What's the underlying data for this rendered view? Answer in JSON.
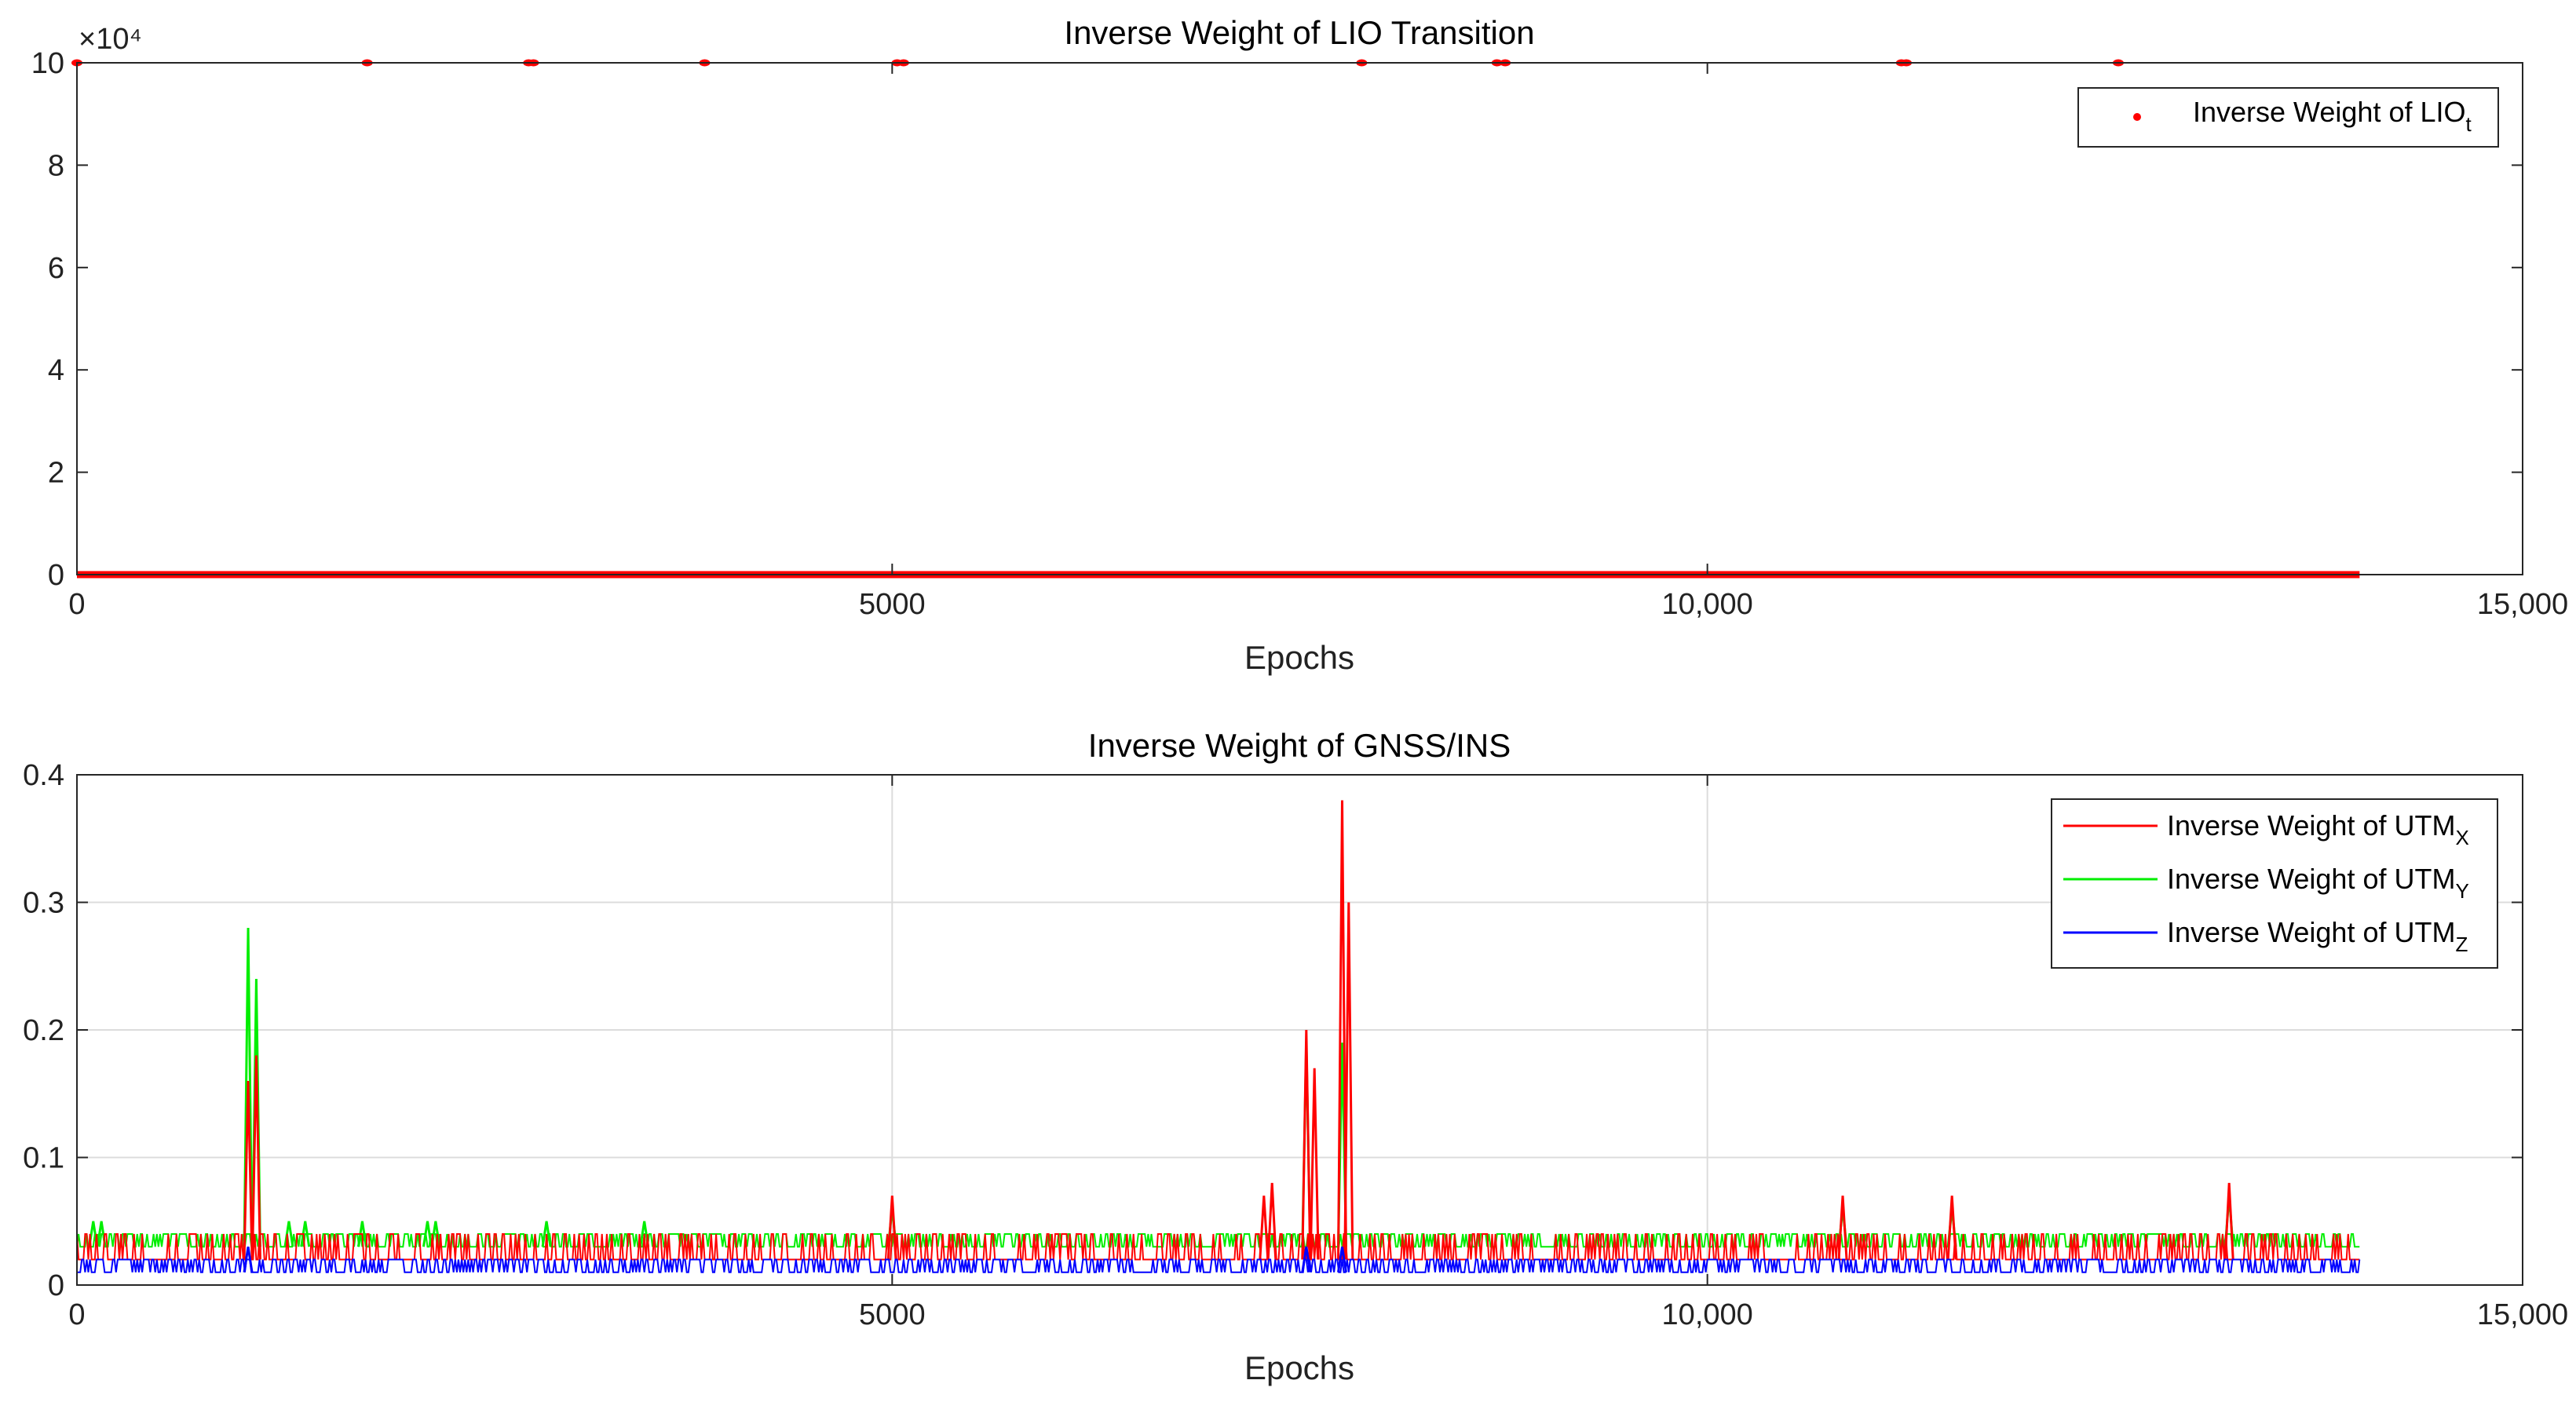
{
  "colors": {
    "utm_x": "#ff0000",
    "utm_y": "#00ee00",
    "utm_z": "#0000ff",
    "lio": "#ff0000"
  },
  "chart_data": [
    {
      "type": "scatter",
      "title": "Inverse Weight of LIO Transition",
      "xlabel": "Epochs",
      "ylabel": "",
      "xlim": [
        0,
        15000
      ],
      "ylim": [
        0,
        100000
      ],
      "y_exponent": "×10⁴",
      "xticks": [
        "0",
        "5000",
        "10,000",
        "15,000"
      ],
      "yticks": [
        "0",
        "2",
        "4",
        "6",
        "8",
        "10"
      ],
      "grid": false,
      "legend": "top-right",
      "series": [
        {
          "name": "Inverse Weight of LIO",
          "name_sub": "t",
          "x_range": [
            0,
            14000
          ],
          "baseline": 0,
          "spike_value": 100000,
          "spike_x": [
            0,
            1780,
            2770,
            2800,
            3850,
            5030,
            5070,
            7880,
            8710,
            8760,
            11190,
            11220,
            12520
          ]
        }
      ]
    },
    {
      "type": "line",
      "title": "Inverse Weight of GNSS/INS",
      "xlabel": "Epochs",
      "ylabel": "",
      "xlim": [
        0,
        15000
      ],
      "ylim": [
        0,
        0.4
      ],
      "xticks": [
        "0",
        "5000",
        "10,000",
        "15,000"
      ],
      "yticks": [
        "0",
        "0.1",
        "0.2",
        "0.3",
        "0.4"
      ],
      "grid": true,
      "legend": "top-right",
      "x_range": [
        0,
        14000
      ],
      "series": [
        {
          "name": "Inverse Weight of UTM",
          "name_sub": "X",
          "low": 0.02,
          "high": 0.04,
          "spikes": [
            [
              1050,
              0.16
            ],
            [
              1100,
              0.18
            ],
            [
              5000,
              0.07
            ],
            [
              7280,
              0.07
            ],
            [
              7330,
              0.08
            ],
            [
              7540,
              0.2
            ],
            [
              7590,
              0.17
            ],
            [
              7760,
              0.38
            ],
            [
              7800,
              0.3
            ],
            [
              10830,
              0.07
            ],
            [
              11500,
              0.07
            ],
            [
              13200,
              0.08
            ]
          ]
        },
        {
          "name": "Inverse Weight of UTM",
          "name_sub": "Y",
          "low": 0.03,
          "high": 0.04,
          "spikes": [
            [
              100,
              0.05
            ],
            [
              150,
              0.05
            ],
            [
              1050,
              0.28
            ],
            [
              1100,
              0.24
            ],
            [
              1300,
              0.05
            ],
            [
              1400,
              0.05
            ],
            [
              1750,
              0.05
            ],
            [
              2150,
              0.05
            ],
            [
              2200,
              0.05
            ],
            [
              2880,
              0.05
            ],
            [
              3480,
              0.05
            ],
            [
              5000,
              0.06
            ],
            [
              7540,
              0.19
            ],
            [
              7760,
              0.19
            ],
            [
              10830,
              0.06
            ],
            [
              11500,
              0.06
            ],
            [
              13200,
              0.07
            ]
          ]
        },
        {
          "name": "Inverse Weight of UTM",
          "name_sub": "Z",
          "low": 0.01,
          "high": 0.02,
          "spikes": [
            [
              1050,
              0.03
            ],
            [
              7540,
              0.03
            ],
            [
              7760,
              0.03
            ]
          ]
        }
      ]
    }
  ]
}
